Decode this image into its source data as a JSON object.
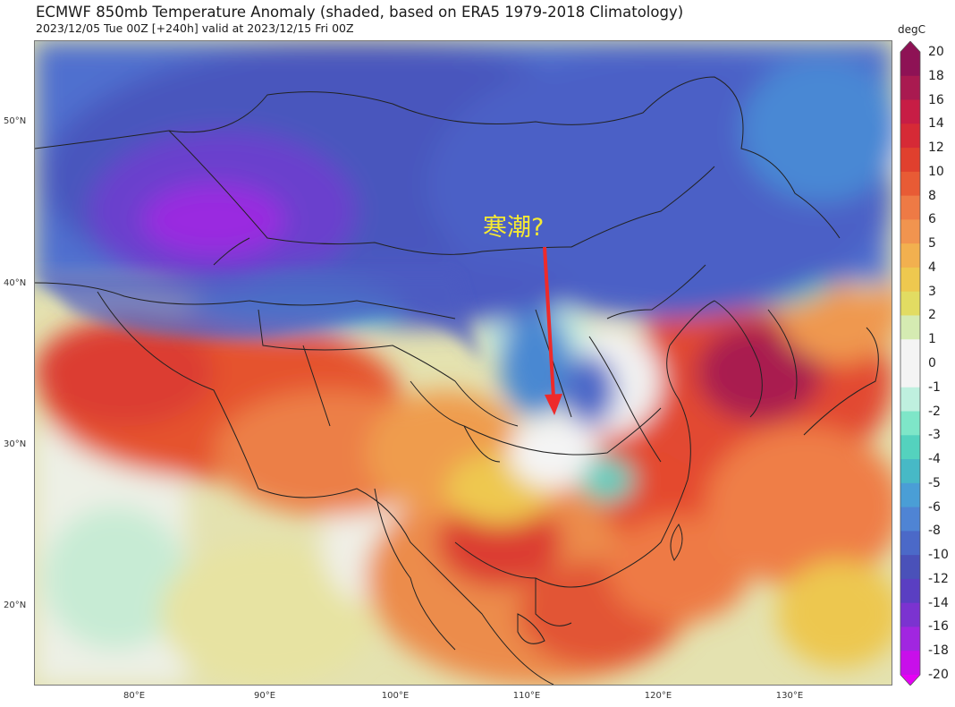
{
  "title": "ECMWF 850mb Temperature Anomaly (shaded, based on ERA5 1979-2018 Climatology)",
  "subtitle": "2023/12/05 Tue 00Z [+240h] valid at 2023/12/15 Fri 00Z",
  "annotation": "寒潮?",
  "colors": {
    "annotation_text": "#f6ea32",
    "arrow": "#ee2a2a",
    "borders": "#222222"
  },
  "lat_labels": [
    "50°N",
    "40°N",
    "30°N",
    "20°N"
  ],
  "lon_labels": [
    "80°E",
    "90°E",
    "100°E",
    "110°E",
    "120°E",
    "130°E"
  ],
  "colorbar": {
    "unit": "degC",
    "ticks": [
      "20",
      "18",
      "16",
      "14",
      "12",
      "10",
      "8",
      "6",
      "5",
      "4",
      "3",
      "2",
      "1",
      "0",
      "-1",
      "-2",
      "-3",
      "-4",
      "-5",
      "-6",
      "-8",
      "-10",
      "-12",
      "-14",
      "-16",
      "-18",
      "-20"
    ],
    "colors": [
      "#8e1255",
      "#a91a50",
      "#c71d45",
      "#d62a36",
      "#e0402e",
      "#e85b35",
      "#ee7a45",
      "#f1944f",
      "#f2b04f",
      "#eec84f",
      "#e2dc62",
      "#d5ebb2",
      "#f4f4f4",
      "#f4f4f4",
      "#bff0df",
      "#7ee6c8",
      "#54d2be",
      "#47b9c6",
      "#4a9ed6",
      "#4f84d4",
      "#4b69c8",
      "#4a51b9",
      "#5a3fc2",
      "#7b33d0",
      "#a126e0",
      "#c80fea",
      "#e600f5"
    ]
  }
}
